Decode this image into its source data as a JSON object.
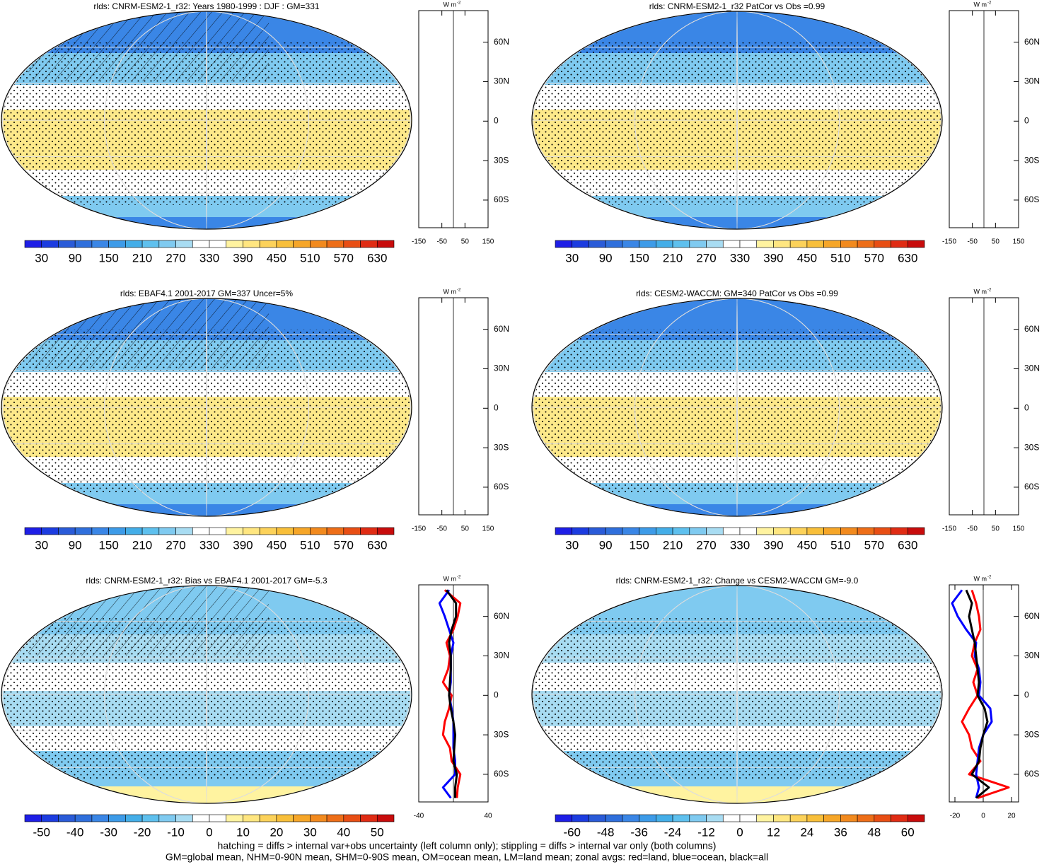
{
  "chart_data": [
    {
      "type": "map",
      "title": "rlds: CNRM-ESM2-1_r32: Years 1980-1999 : DJF : GM=331",
      "colorbar": {
        "ticks": [
          30,
          90,
          150,
          210,
          270,
          330,
          390,
          450,
          510,
          570,
          630
        ],
        "colors": [
          "#1e1ee6",
          "#1c3ce0",
          "#2a5bd8",
          "#2f6fdc",
          "#3a86e6",
          "#3d9be8",
          "#44aee8",
          "#5ec0ee",
          "#7fcaf0",
          "#a8dcf2",
          "#ffffff",
          "#ffffff",
          "#fff3a0",
          "#ffe680",
          "#fcd25a",
          "#f8bf3a",
          "#f6a628",
          "#f28a1e",
          "#ee6e18",
          "#e84e14",
          "#e02c14",
          "#c80c0c"
        ]
      },
      "zonal": {
        "units": {
          "base": "W m",
          "exponent": "-2"
        },
        "xlim": [
          -150,
          150
        ],
        "xticks": [
          -150,
          -50,
          50,
          150
        ],
        "ylim": [
          -81,
          84
        ],
        "yticks": [
          {
            "value": 60,
            "label": "60N"
          },
          {
            "value": 30,
            "label": "30N"
          },
          0,
          {
            "value": -30,
            "label": "30S"
          },
          {
            "value": -60,
            "label": "60S"
          }
        ]
      }
    },
    {
      "type": "map",
      "title": "rlds: CNRM-ESM2-1_r32 PatCor vs Obs =0.99",
      "colorbar": {
        "ticks": [
          30,
          90,
          150,
          210,
          270,
          330,
          390,
          450,
          510,
          570,
          630
        ],
        "colors": [
          "#1e1ee6",
          "#1c3ce0",
          "#2a5bd8",
          "#2f6fdc",
          "#3a86e6",
          "#3d9be8",
          "#44aee8",
          "#5ec0ee",
          "#7fcaf0",
          "#a8dcf2",
          "#ffffff",
          "#ffffff",
          "#fff3a0",
          "#ffe680",
          "#fcd25a",
          "#f8bf3a",
          "#f6a628",
          "#f28a1e",
          "#ee6e18",
          "#e84e14",
          "#e02c14",
          "#c80c0c"
        ]
      },
      "zonal": {
        "units": {
          "base": "W m",
          "exponent": "-2"
        },
        "xlim": [
          -150,
          150
        ],
        "xticks": [
          -150,
          -50,
          50,
          150
        ],
        "ylim": [
          -81,
          84
        ],
        "yticks": [
          {
            "value": 60,
            "label": "60N"
          },
          {
            "value": 30,
            "label": "30N"
          },
          0,
          {
            "value": -30,
            "label": "30S"
          },
          {
            "value": -60,
            "label": "60S"
          }
        ]
      }
    },
    {
      "type": "map",
      "title": "rlds: EBAF4.1 2001-2017 GM=337 Uncer=5%",
      "colorbar": {
        "ticks": [
          30,
          90,
          150,
          210,
          270,
          330,
          390,
          450,
          510,
          570,
          630
        ],
        "colors": [
          "#1e1ee6",
          "#1c3ce0",
          "#2a5bd8",
          "#2f6fdc",
          "#3a86e6",
          "#3d9be8",
          "#44aee8",
          "#5ec0ee",
          "#7fcaf0",
          "#a8dcf2",
          "#ffffff",
          "#ffffff",
          "#fff3a0",
          "#ffe680",
          "#fcd25a",
          "#f8bf3a",
          "#f6a628",
          "#f28a1e",
          "#ee6e18",
          "#e84e14",
          "#e02c14",
          "#c80c0c"
        ]
      },
      "zonal": {
        "units": {
          "base": "W m",
          "exponent": "-2"
        },
        "xlim": [
          -150,
          150
        ],
        "xticks": [
          -150,
          -50,
          50,
          150
        ],
        "ylim": [
          -81,
          84
        ],
        "yticks": [
          {
            "value": 60,
            "label": "60N"
          },
          {
            "value": 30,
            "label": "30N"
          },
          0,
          {
            "value": -30,
            "label": "30S"
          },
          {
            "value": -60,
            "label": "60S"
          }
        ]
      }
    },
    {
      "type": "map",
      "title": "rlds: CESM2-WACCM: GM=340 PatCor vs Obs =0.99",
      "colorbar": {
        "ticks": [
          30,
          90,
          150,
          210,
          270,
          330,
          390,
          450,
          510,
          570,
          630
        ],
        "colors": [
          "#1e1ee6",
          "#1c3ce0",
          "#2a5bd8",
          "#2f6fdc",
          "#3a86e6",
          "#3d9be8",
          "#44aee8",
          "#5ec0ee",
          "#7fcaf0",
          "#a8dcf2",
          "#ffffff",
          "#ffffff",
          "#fff3a0",
          "#ffe680",
          "#fcd25a",
          "#f8bf3a",
          "#f6a628",
          "#f28a1e",
          "#ee6e18",
          "#e84e14",
          "#e02c14",
          "#c80c0c"
        ]
      },
      "zonal": {
        "units": {
          "base": "W m",
          "exponent": "-2"
        },
        "xlim": [
          -150,
          150
        ],
        "xticks": [
          -150,
          -50,
          50,
          150
        ],
        "ylim": [
          -81,
          84
        ],
        "yticks": [
          {
            "value": 60,
            "label": "60N"
          },
          {
            "value": 30,
            "label": "30N"
          },
          0,
          {
            "value": -30,
            "label": "30S"
          },
          {
            "value": -60,
            "label": "60S"
          }
        ]
      }
    },
    {
      "type": "map",
      "title": "rlds: CNRM-ESM2-1_r32: Bias vs EBAF4.1 2001-2017 GM=-5.3",
      "colorbar": {
        "ticks": [
          -50,
          -40,
          -30,
          -20,
          -10,
          0,
          10,
          20,
          30,
          40,
          50
        ],
        "colors": [
          "#1e1ee6",
          "#1c3ce0",
          "#2a5bd8",
          "#2f6fdc",
          "#3a86e6",
          "#3d9be8",
          "#44aee8",
          "#5ec0ee",
          "#7fcaf0",
          "#a8dcf2",
          "#ffffff",
          "#ffffff",
          "#fff3a0",
          "#ffe680",
          "#fcd25a",
          "#f8bf3a",
          "#f6a628",
          "#f28a1e",
          "#ee6e18",
          "#e84e14",
          "#e02c14",
          "#c80c0c"
        ]
      },
      "zonal": {
        "units": {
          "base": "W m",
          "exponent": "-2"
        },
        "xlim": [
          -40,
          40
        ],
        "xticks": [
          -40,
          40
        ],
        "ylim": [
          -81,
          84
        ],
        "yticks": [
          {
            "value": 60,
            "label": "60N"
          },
          {
            "value": 30,
            "label": "30N"
          },
          0,
          {
            "value": -30,
            "label": "30S"
          },
          {
            "value": -60,
            "label": "60S"
          }
        ],
        "lat": [
          80,
          70,
          60,
          50,
          40,
          30,
          20,
          10,
          0,
          -10,
          -20,
          -30,
          -40,
          -50,
          -60,
          -70,
          -78
        ],
        "series": [
          {
            "color": "#ff0000",
            "values": [
              -10,
              8,
              5,
              0,
              -8,
              -4,
              -6,
              -12,
              -2,
              -5,
              -10,
              -12,
              -4,
              -2,
              8,
              5,
              4
            ]
          },
          {
            "color": "#0000ff",
            "values": [
              -5,
              -16,
              -10,
              -5,
              0,
              -3,
              -3,
              -3,
              -5,
              -2,
              0,
              0,
              0,
              2,
              2,
              -12,
              -3
            ]
          },
          {
            "color": "#000000",
            "values": [
              -8,
              3,
              3,
              -2,
              -5,
              -3,
              -3,
              -4,
              -5,
              -3,
              0,
              2,
              1,
              0,
              4,
              2,
              2
            ]
          }
        ]
      }
    },
    {
      "type": "map",
      "title": "rlds: CNRM-ESM2-1_r32: Change vs CESM2-WACCM GM=-9.0",
      "colorbar": {
        "ticks": [
          -60,
          -48,
          -36,
          -24,
          -12,
          0,
          12,
          24,
          36,
          48,
          60
        ],
        "colors": [
          "#1e1ee6",
          "#1c3ce0",
          "#2a5bd8",
          "#2f6fdc",
          "#3a86e6",
          "#3d9be8",
          "#44aee8",
          "#5ec0ee",
          "#7fcaf0",
          "#a8dcf2",
          "#ffffff",
          "#ffffff",
          "#fff3a0",
          "#ffe680",
          "#fcd25a",
          "#f8bf3a",
          "#f6a628",
          "#f28a1e",
          "#ee6e18",
          "#e84e14",
          "#e02c14",
          "#c80c0c"
        ]
      },
      "zonal": {
        "units": {
          "base": "W m",
          "exponent": "-2"
        },
        "xlim": [
          -24,
          25
        ],
        "xticks": [
          -20,
          0,
          20
        ],
        "ylim": [
          -81,
          84
        ],
        "yticks": [
          {
            "value": 60,
            "label": "60N"
          },
          {
            "value": 30,
            "label": "30N"
          },
          0,
          {
            "value": -30,
            "label": "30S"
          },
          {
            "value": -60,
            "label": "60S"
          }
        ],
        "lat": [
          80,
          70,
          60,
          50,
          40,
          30,
          20,
          10,
          0,
          -10,
          -20,
          -30,
          -40,
          -50,
          -60,
          -70,
          -78
        ],
        "series": [
          {
            "color": "#ff0000",
            "values": [
              -8,
              -5,
              -3,
              -2,
              -6,
              -8,
              -4,
              -7,
              -4,
              -10,
              -15,
              -10,
              -8,
              -2,
              -10,
              18,
              -4
            ]
          },
          {
            "color": "#0000ff",
            "values": [
              -15,
              -22,
              -18,
              -12,
              -5,
              -6,
              -3,
              -2,
              -3,
              5,
              6,
              0,
              -3,
              -4,
              -5,
              -3,
              -5
            ]
          },
          {
            "color": "#000000",
            "values": [
              -12,
              -8,
              -10,
              -8,
              -6,
              -5,
              -4,
              -3,
              -4,
              1,
              3,
              0,
              -2,
              -3,
              -8,
              4,
              -5
            ]
          }
        ]
      }
    }
  ],
  "footer": [
    "hatching = diffs > internal var+obs uncertainty (left column only); stippling = diffs > internal var only (both columns)",
    "GM=global mean, NHM=0-90N mean, SHM=0-90S mean, OM=ocean mean, LM=land mean; zonal avgs: red=land, blue=ocean, black=all"
  ]
}
